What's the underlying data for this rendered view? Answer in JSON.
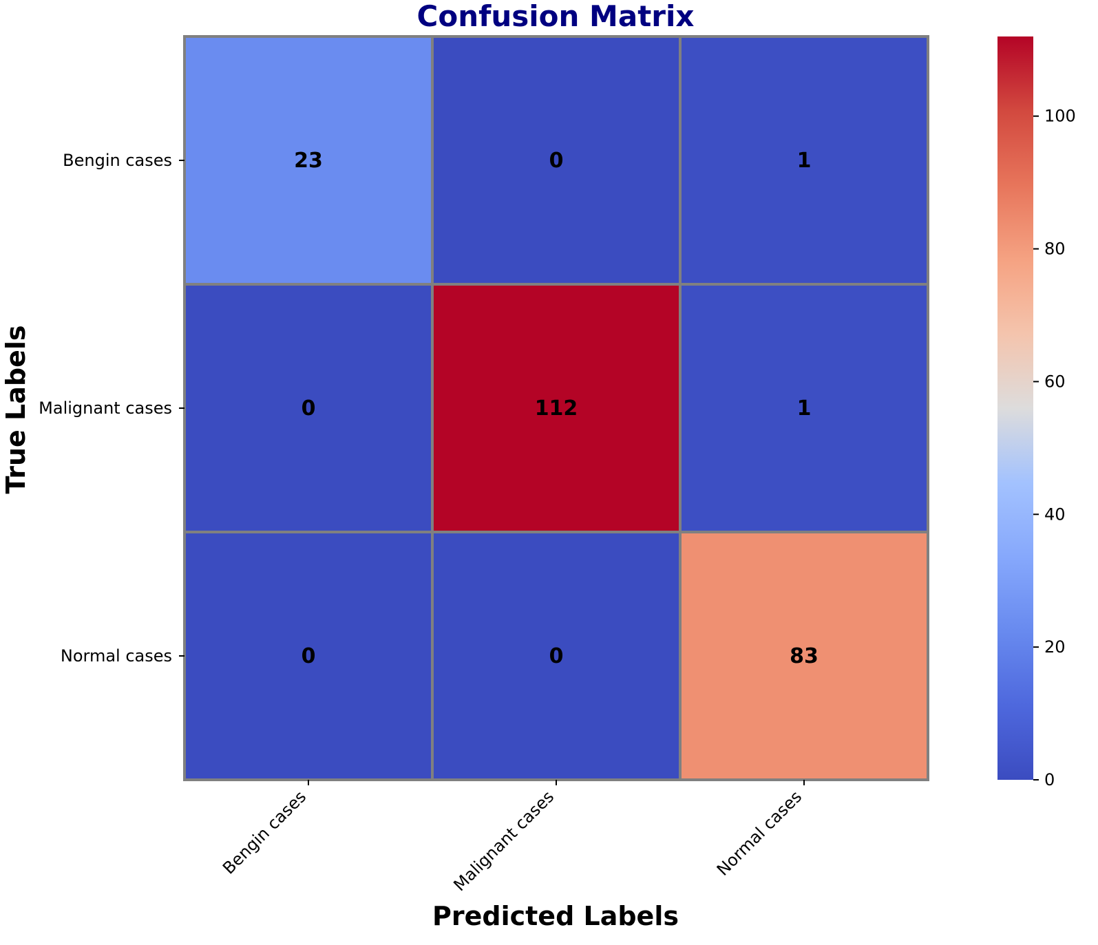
{
  "chart_data": {
    "type": "heatmap",
    "title": "Confusion Matrix",
    "xlabel": "Predicted Labels",
    "ylabel": "True Labels",
    "x_categories": [
      "Bengin cases",
      "Malignant cases",
      "Normal cases"
    ],
    "y_categories": [
      "Bengin cases",
      "Malignant cases",
      "Normal cases"
    ],
    "values": [
      [
        23,
        0,
        1
      ],
      [
        0,
        112,
        1
      ],
      [
        0,
        0,
        83
      ]
    ],
    "colormap": "coolwarm",
    "vmin": 0,
    "vmax": 112,
    "colorbar_ticks": [
      0,
      20,
      40,
      60,
      80,
      100
    ],
    "cell_border_color": "#808080"
  }
}
